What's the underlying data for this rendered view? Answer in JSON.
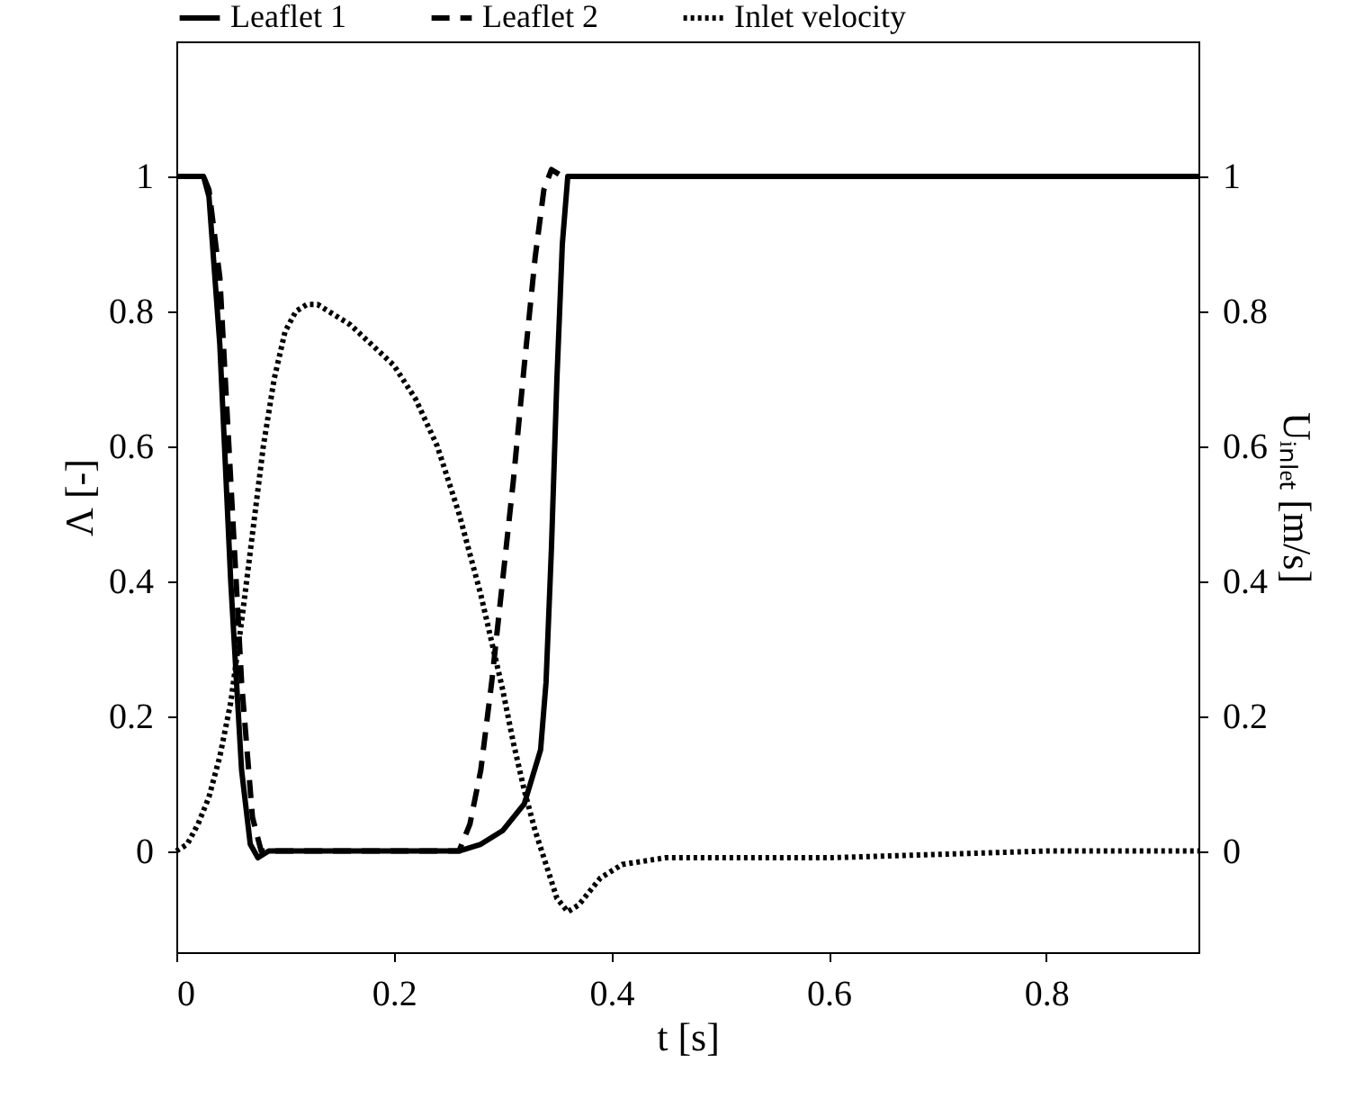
{
  "chart_data": {
    "type": "line",
    "xlabel": "t [s]",
    "ylabel": "Λ [-]",
    "y2label": "Uᵢₙₗₑₜ [m/s]",
    "xlim": [
      0,
      0.94
    ],
    "xticks": [
      0,
      0.2,
      0.4,
      0.6,
      0.8
    ],
    "ylim": [
      -0.15,
      1.2
    ],
    "yticks": [
      0,
      0.2,
      0.4,
      0.6,
      0.8,
      1
    ],
    "y2lim": [
      -0.15,
      1.2
    ],
    "y2ticks": [
      0,
      0.2,
      0.4,
      0.6,
      0.8,
      1
    ],
    "legend": "top",
    "grid": false,
    "marker": "none",
    "series": [
      {
        "name": "Leaflet 1",
        "color": "#000000",
        "line_style": "solid",
        "x": [
          0,
          0.025,
          0.03,
          0.04,
          0.05,
          0.06,
          0.068,
          0.075,
          0.085,
          0.26,
          0.28,
          0.3,
          0.32,
          0.335,
          0.34,
          0.345,
          0.35,
          0.355,
          0.36,
          0.37,
          0.94
        ],
        "values": [
          1,
          1,
          0.97,
          0.75,
          0.4,
          0.12,
          0.01,
          -0.01,
          0,
          0,
          0.01,
          0.03,
          0.07,
          0.15,
          0.25,
          0.45,
          0.7,
          0.9,
          1,
          1,
          1
        ]
      },
      {
        "name": "Leaflet 2",
        "color": "#000000",
        "line_style": "dashed",
        "x": [
          0,
          0.025,
          0.03,
          0.04,
          0.05,
          0.06,
          0.07,
          0.078,
          0.26,
          0.27,
          0.28,
          0.29,
          0.3,
          0.31,
          0.32,
          0.33,
          0.338,
          0.345,
          0.355,
          0.94
        ],
        "values": [
          1,
          1,
          0.98,
          0.85,
          0.55,
          0.25,
          0.05,
          0,
          0,
          0.04,
          0.12,
          0.25,
          0.4,
          0.55,
          0.72,
          0.88,
          0.98,
          1.01,
          1,
          1
        ]
      },
      {
        "name": "Inlet velocity",
        "color": "#000000",
        "line_style": "dotted",
        "axis": "y2",
        "x": [
          0,
          0.01,
          0.02,
          0.03,
          0.04,
          0.05,
          0.06,
          0.07,
          0.08,
          0.09,
          0.1,
          0.11,
          0.12,
          0.13,
          0.14,
          0.16,
          0.18,
          0.2,
          0.22,
          0.24,
          0.26,
          0.28,
          0.3,
          0.31,
          0.32,
          0.33,
          0.34,
          0.35,
          0.36,
          0.37,
          0.38,
          0.39,
          0.41,
          0.45,
          0.6,
          0.8,
          0.94
        ],
        "values": [
          0,
          0.01,
          0.04,
          0.08,
          0.14,
          0.22,
          0.34,
          0.47,
          0.6,
          0.7,
          0.77,
          0.8,
          0.81,
          0.81,
          0.8,
          0.78,
          0.75,
          0.72,
          0.67,
          0.6,
          0.5,
          0.38,
          0.24,
          0.16,
          0.09,
          0.03,
          -0.02,
          -0.07,
          -0.09,
          -0.08,
          -0.06,
          -0.04,
          -0.02,
          -0.01,
          -0.01,
          0,
          0
        ]
      }
    ]
  }
}
